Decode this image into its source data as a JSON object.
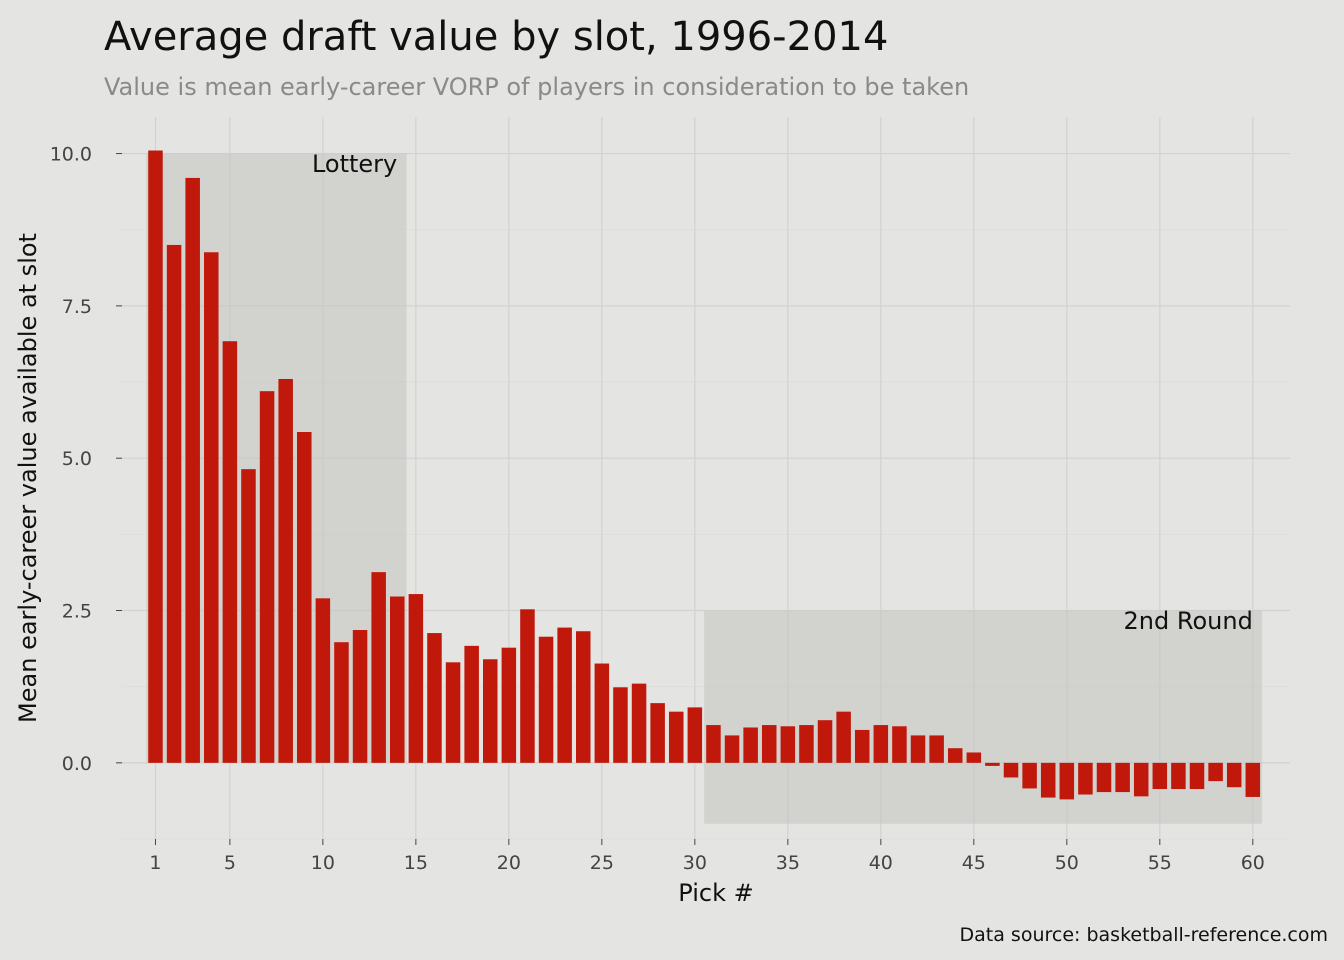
{
  "chart_data": {
    "type": "bar",
    "title": "Average draft value by slot, 1996-2014",
    "subtitle": "Value is mean early-career VORP of players in consideration to be taken",
    "xlabel": "Pick #",
    "ylabel": "Mean early-career value available at slot",
    "caption": "Data source: basketball-reference.com",
    "x": [
      1,
      2,
      3,
      4,
      5,
      6,
      7,
      8,
      9,
      10,
      11,
      12,
      13,
      14,
      15,
      16,
      17,
      18,
      19,
      20,
      21,
      22,
      23,
      24,
      25,
      26,
      27,
      28,
      29,
      30,
      31,
      32,
      33,
      34,
      35,
      36,
      37,
      38,
      39,
      40,
      41,
      42,
      43,
      44,
      45,
      46,
      47,
      48,
      49,
      50,
      51,
      52,
      53,
      54,
      55,
      56,
      57,
      58,
      59,
      60
    ],
    "values": [
      10.05,
      8.5,
      9.6,
      8.38,
      6.92,
      4.82,
      6.1,
      6.3,
      5.43,
      2.7,
      1.98,
      2.18,
      3.13,
      2.73,
      2.77,
      2.13,
      1.65,
      1.92,
      1.7,
      1.89,
      2.52,
      2.07,
      2.22,
      2.16,
      1.63,
      1.24,
      1.3,
      0.98,
      0.84,
      0.91,
      0.62,
      0.45,
      0.58,
      0.62,
      0.6,
      0.62,
      0.7,
      0.84,
      0.54,
      0.62,
      0.6,
      0.45,
      0.45,
      0.24,
      0.17,
      -0.05,
      -0.24,
      -0.42,
      -0.57,
      -0.6,
      -0.52,
      -0.48,
      -0.48,
      -0.55,
      -0.43,
      -0.43,
      -0.43,
      -0.3,
      -0.4,
      -0.56
    ],
    "xticks": [
      1,
      5,
      10,
      15,
      20,
      25,
      30,
      35,
      40,
      45,
      50,
      55,
      60
    ],
    "xtick_labels": [
      "1",
      "5",
      "10",
      "15",
      "20",
      "25",
      "30",
      "35",
      "40",
      "45",
      "50",
      "55",
      "60"
    ],
    "yticks": [
      0,
      2.5,
      5,
      7.5,
      10
    ],
    "ytick_labels": [
      "0.0",
      "2.5",
      "5.0",
      "7.5",
      "10.0"
    ],
    "xlim": [
      -0.8,
      62
    ],
    "ylim": [
      -1.25,
      10.6
    ],
    "bar_color": "#c0180a",
    "grid": true,
    "annotations": [
      {
        "label": "Lottery",
        "x_range": [
          0.5,
          14.5
        ],
        "y_range": [
          0,
          10
        ],
        "label_x": 14,
        "label_y": 9.7
      },
      {
        "label": "2nd Round",
        "x_range": [
          30.5,
          60.5
        ],
        "y_range": [
          -1,
          2.5
        ],
        "label_x": 60,
        "label_y": 2.2
      }
    ]
  }
}
